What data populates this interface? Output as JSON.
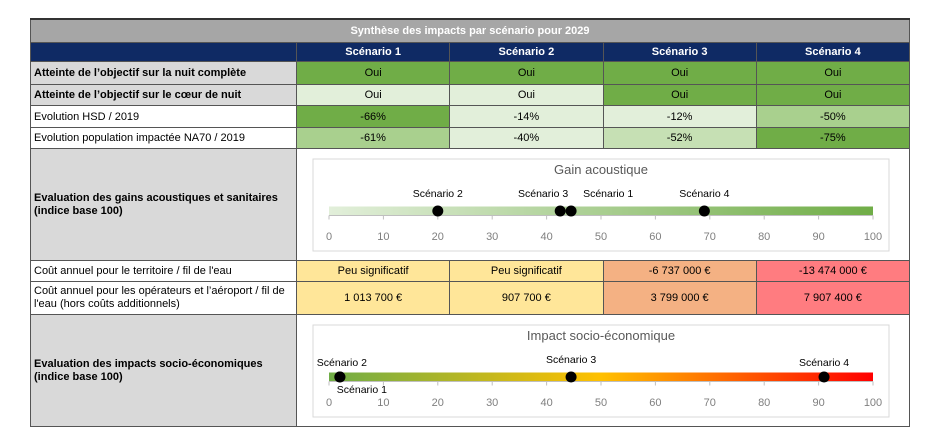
{
  "title": "Synthèse des impacts par scénario pour 2029",
  "scenarios": [
    "Scénario 1",
    "Scénario 2",
    "Scénario 3",
    "Scénario 4"
  ],
  "rows": [
    {
      "label": "Atteinte de l’objectif sur la nuit complète",
      "values": [
        "Oui",
        "Oui",
        "Oui",
        "Oui"
      ]
    },
    {
      "label": "Atteinte de l’objectif sur le cœur de nuit",
      "values": [
        "Oui",
        "Oui",
        "Oui",
        "Oui"
      ]
    },
    {
      "label": "Evolution HSD / 2019",
      "values": [
        "-66%",
        "-14%",
        "-12%",
        "-50%"
      ]
    },
    {
      "label": "Evolution population impactée NA70 / 2019",
      "values": [
        "-61%",
        "-40%",
        "-52%",
        "-75%"
      ]
    }
  ],
  "acoustic_label": "Evaluation des gains acoustiques et sanitaires (indice base 100)",
  "cost_rows": [
    {
      "label": "Coût annuel pour le territoire / fil de l'eau",
      "values": [
        "Peu significatif",
        "Peu significatif",
        "-6 737 000 €",
        "-13 474 000 €"
      ]
    },
    {
      "label": "Coût annuel pour les opérateurs et l’aéroport / fil de l'eau (hors coûts additionnels)",
      "values": [
        "1 013 700 €",
        "907 700 €",
        "3 799 000 €",
        "7 907 400 €"
      ]
    }
  ],
  "socio_label": "Evaluation des impacts socio-économiques (indice base 100)",
  "chart_data": [
    {
      "type": "scatter",
      "title": "Gain acoustique",
      "xlim": [
        0,
        100
      ],
      "ticks": [
        0,
        10,
        20,
        30,
        40,
        50,
        60,
        70,
        80,
        90,
        100
      ],
      "points": [
        {
          "name": "Scénario 1",
          "x": 44.5
        },
        {
          "name": "Scénario 2",
          "x": 20
        },
        {
          "name": "Scénario 3",
          "x": 42.5
        },
        {
          "name": "Scénario 4",
          "x": 69
        }
      ],
      "gradient": [
        "#e2efda",
        "#70ad47"
      ]
    },
    {
      "type": "scatter",
      "title": "Impact socio-économique",
      "xlim": [
        0,
        100
      ],
      "ticks": [
        0,
        10,
        20,
        30,
        40,
        50,
        60,
        70,
        80,
        90,
        100
      ],
      "points": [
        {
          "name": "Scénario 1",
          "x": 2
        },
        {
          "name": "Scénario 2",
          "x": 2
        },
        {
          "name": "Scénario 3",
          "x": 44.5
        },
        {
          "name": "Scénario 4",
          "x": 91
        }
      ],
      "gradient": [
        "#70ad47",
        "#ffc000",
        "#ff0000"
      ]
    }
  ]
}
